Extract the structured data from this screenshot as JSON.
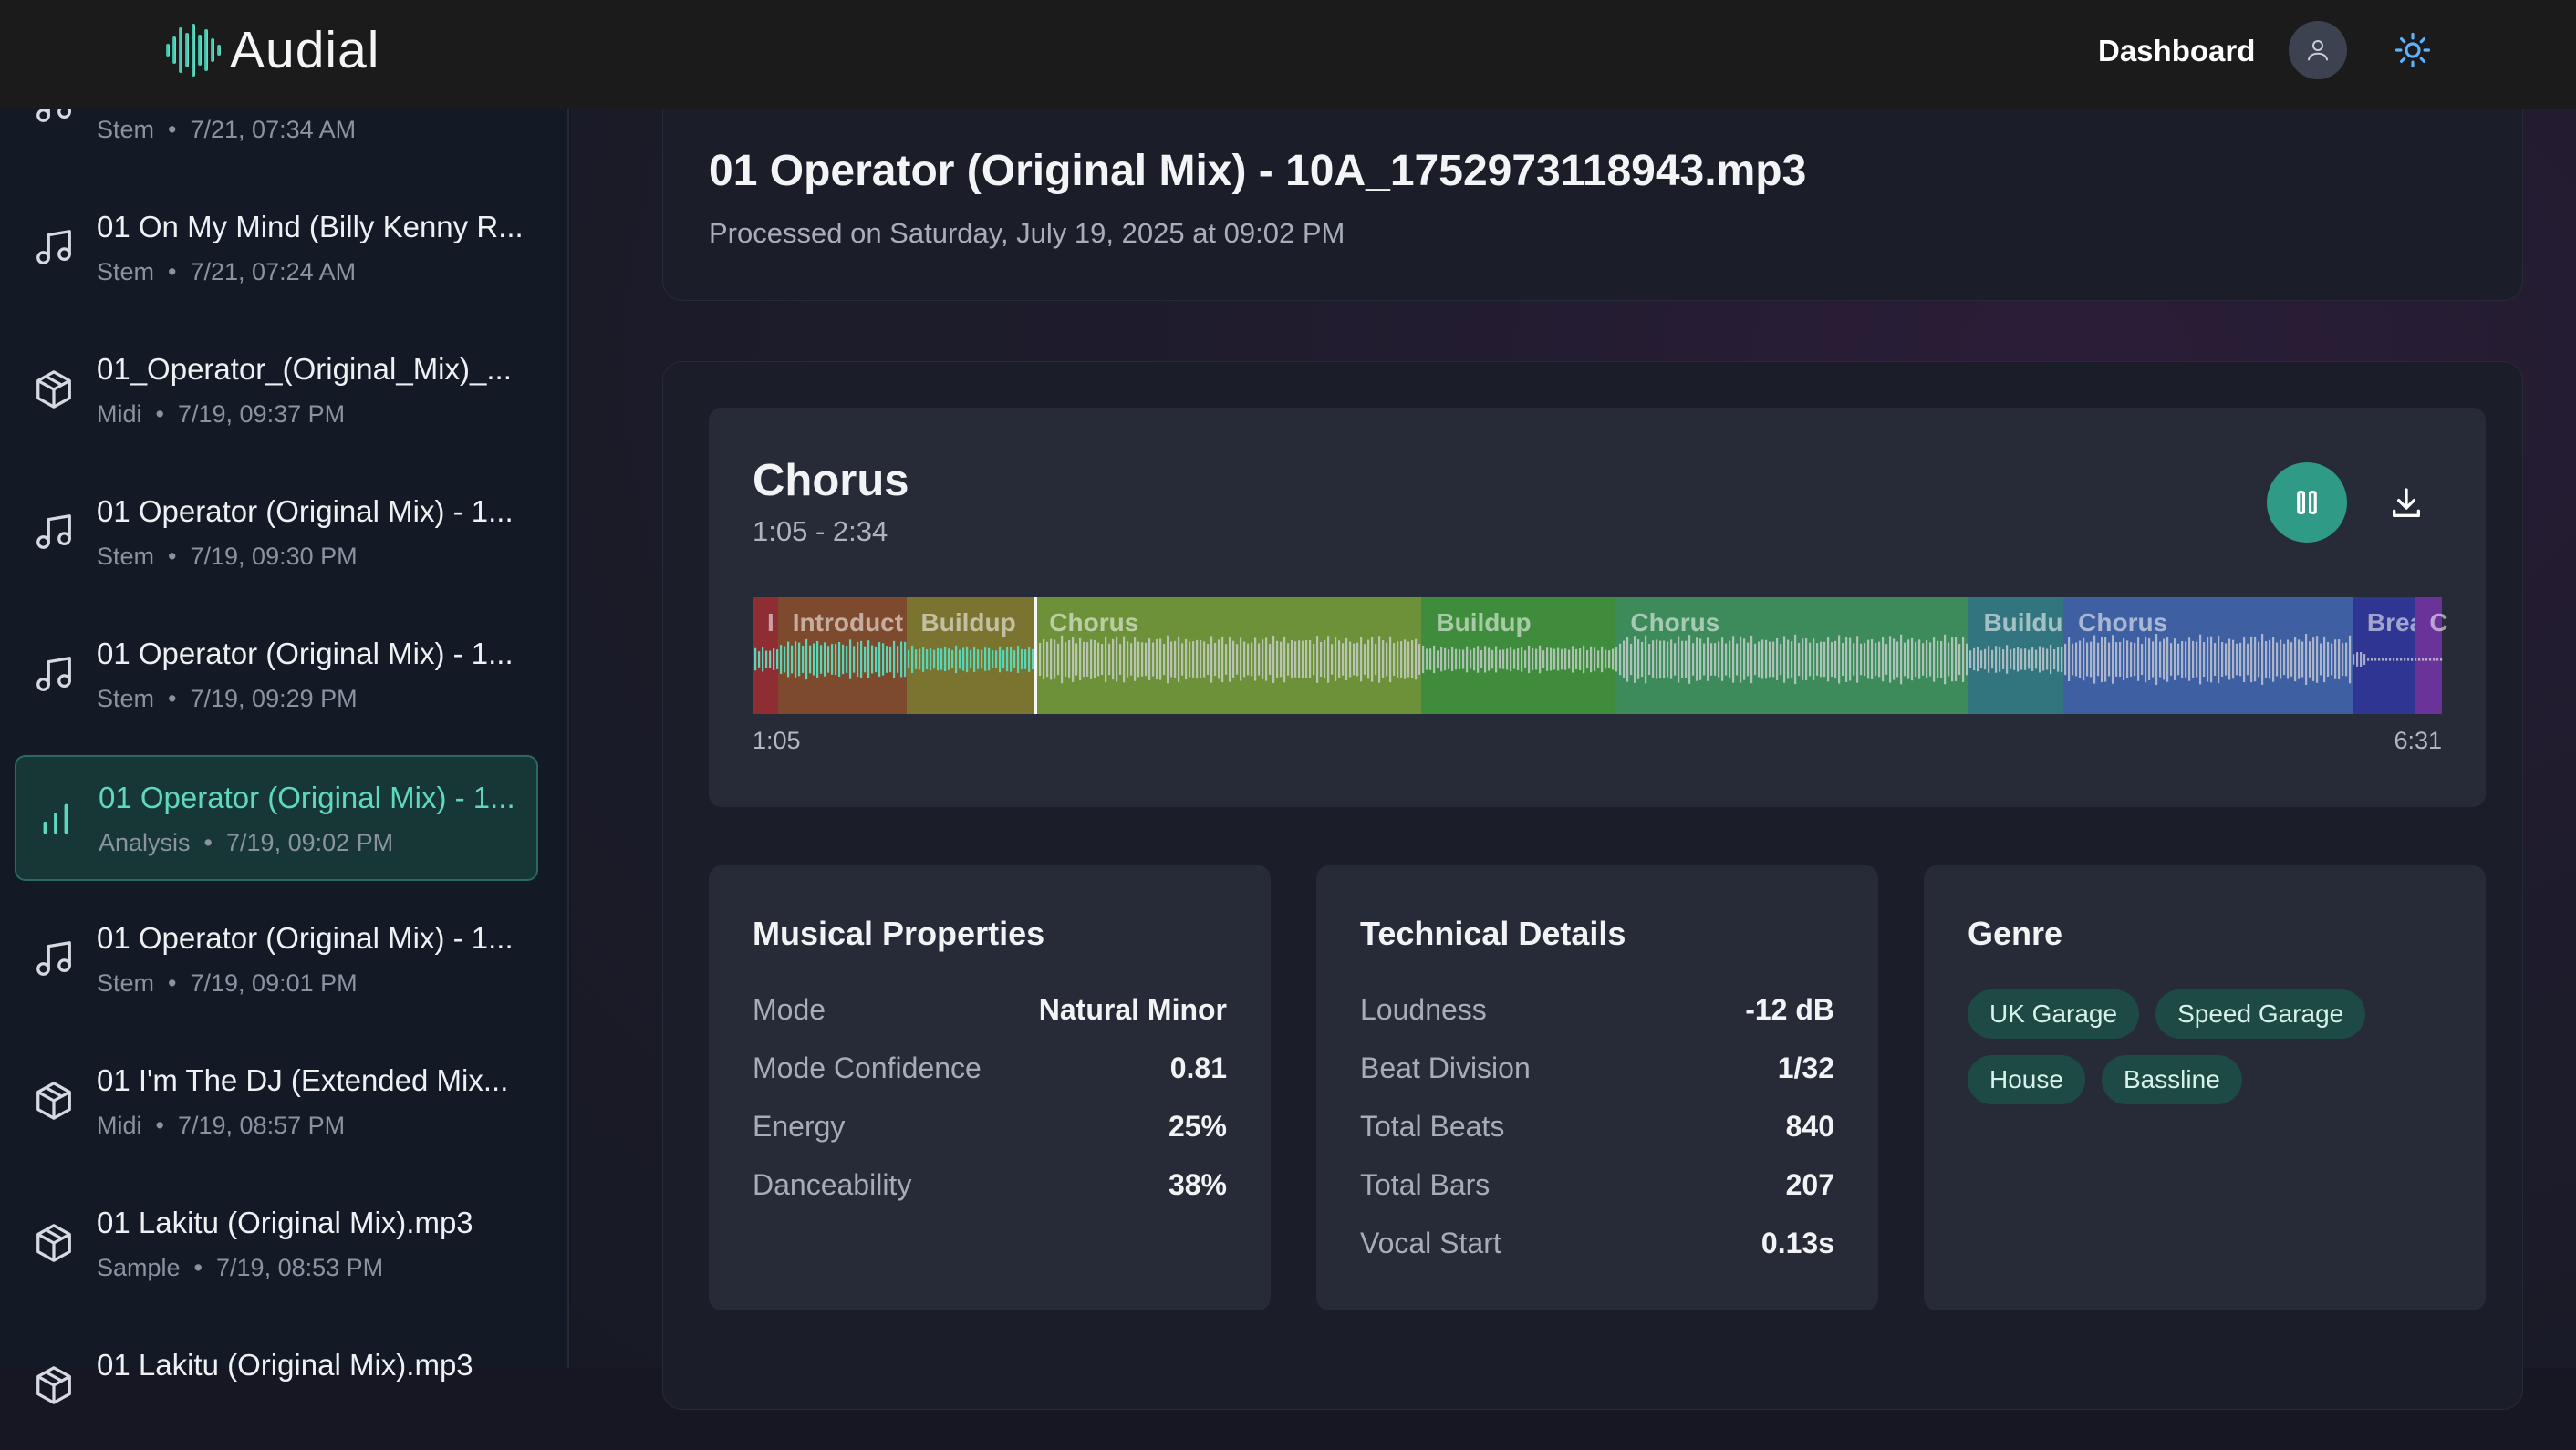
{
  "header": {
    "brand": "Audial",
    "nav_dashboard": "Dashboard",
    "accent": "#4fd1b5"
  },
  "sidebar": {
    "items": [
      {
        "title": "",
        "type": "Stem",
        "date": "7/21, 07:34 AM",
        "icon": "music-note-icon",
        "active": false
      },
      {
        "title": "01 On My Mind (Billy Kenny R...",
        "type": "Stem",
        "date": "7/21, 07:24 AM",
        "icon": "music-note-icon",
        "active": false
      },
      {
        "title": "01_Operator_(Original_Mix)_...",
        "type": "Midi",
        "date": "7/19, 09:37 PM",
        "icon": "cube-icon",
        "active": false
      },
      {
        "title": "01 Operator (Original Mix) - 1...",
        "type": "Stem",
        "date": "7/19, 09:30 PM",
        "icon": "music-note-icon",
        "active": false
      },
      {
        "title": "01 Operator (Original Mix) - 1...",
        "type": "Stem",
        "date": "7/19, 09:29 PM",
        "icon": "music-note-icon",
        "active": false
      },
      {
        "title": "01 Operator (Original Mix) - 1...",
        "type": "Analysis",
        "date": "7/19, 09:02 PM",
        "icon": "bar-chart-icon",
        "active": true
      },
      {
        "title": "01 Operator (Original Mix) - 1...",
        "type": "Stem",
        "date": "7/19, 09:01 PM",
        "icon": "music-note-icon",
        "active": false
      },
      {
        "title": "01 I'm The DJ (Extended Mix...",
        "type": "Midi",
        "date": "7/19, 08:57 PM",
        "icon": "cube-icon",
        "active": false
      },
      {
        "title": "01 Lakitu (Original Mix).mp3",
        "type": "Sample",
        "date": "7/19, 08:53 PM",
        "icon": "cube-icon",
        "active": false
      },
      {
        "title": "01 Lakitu (Original Mix).mp3",
        "type": "",
        "date": "",
        "icon": "cube-icon",
        "active": false
      }
    ]
  },
  "main": {
    "file_title": "01 Operator (Original Mix) - 10A_1752973118943.mp3",
    "processed": "Processed on Saturday, July 19, 2025 at 09:02 PM",
    "segment": {
      "name": "Chorus",
      "range": "1:05 - 2:34",
      "time_start": "1:05",
      "time_end": "6:31",
      "sections": [
        {
          "label": "I",
          "color": "#8e2e33",
          "start": 0.0,
          "end": 0.015
        },
        {
          "label": "Introduct",
          "color": "#7e4a2e",
          "start": 0.015,
          "end": 0.091
        },
        {
          "label": "Buildup",
          "color": "#7b7330",
          "start": 0.091,
          "end": 0.167
        },
        {
          "label": "Chorus",
          "color": "#6c9138",
          "start": 0.167,
          "end": 0.396
        },
        {
          "label": "Buildup",
          "color": "#3f8d3c",
          "start": 0.396,
          "end": 0.511
        },
        {
          "label": "Chorus",
          "color": "#3d8b5a",
          "start": 0.511,
          "end": 0.72
        },
        {
          "label": "Buildu",
          "color": "#33757e",
          "start": 0.72,
          "end": 0.776
        },
        {
          "label": "Chorus",
          "color": "#3e5fa2",
          "start": 0.776,
          "end": 0.947
        },
        {
          "label": "Brea",
          "color": "#2f3592",
          "start": 0.947,
          "end": 0.984
        },
        {
          "label": "C",
          "color": "#6a3399",
          "start": 0.984,
          "end": 1.0
        }
      ],
      "played_fraction": 0.167
    },
    "musical": {
      "title": "Musical Properties",
      "rows": [
        {
          "label": "Mode",
          "value": "Natural Minor"
        },
        {
          "label": "Mode Confidence",
          "value": "0.81"
        },
        {
          "label": "Energy",
          "value": "25%"
        },
        {
          "label": "Danceability",
          "value": "38%"
        }
      ]
    },
    "technical": {
      "title": "Technical Details",
      "rows": [
        {
          "label": "Loudness",
          "value": "-12 dB"
        },
        {
          "label": "Beat Division",
          "value": "1/32"
        },
        {
          "label": "Total Beats",
          "value": "840"
        },
        {
          "label": "Total Bars",
          "value": "207"
        },
        {
          "label": "Vocal Start",
          "value": "0.13s"
        }
      ]
    },
    "genre": {
      "title": "Genre",
      "tags": [
        "UK Garage",
        "Speed Garage",
        "House",
        "Bassline"
      ]
    }
  }
}
